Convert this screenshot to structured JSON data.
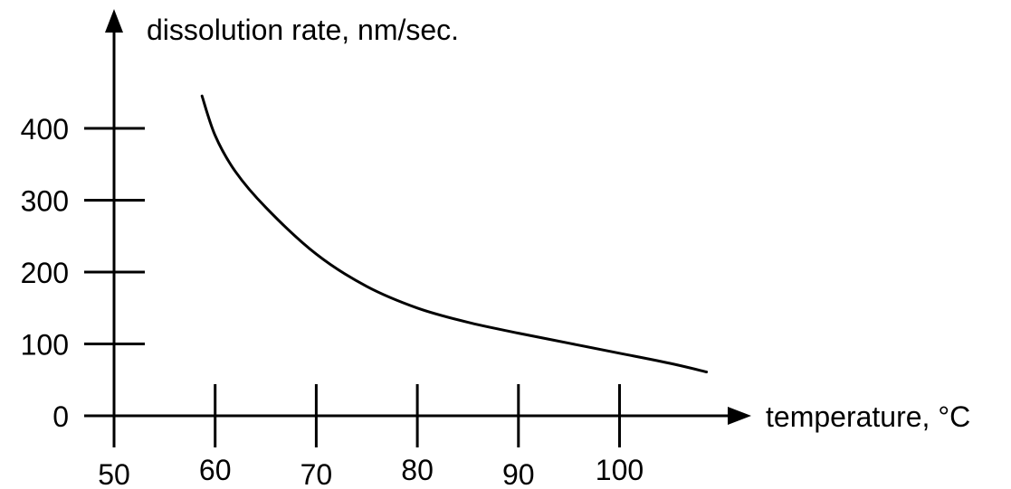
{
  "chart_data": {
    "type": "line",
    "title": "",
    "xlabel": "temperature, °C",
    "ylabel": "dissolution rate, nm/sec.",
    "xlim": [
      50,
      110
    ],
    "ylim": [
      0,
      400
    ],
    "x_ticks": [
      50,
      60,
      70,
      80,
      90,
      100
    ],
    "y_ticks": [
      0,
      100,
      200,
      300,
      400
    ],
    "grid": false,
    "legend": "none",
    "line_color": "#000000",
    "series": [
      {
        "x": [
          58.7,
          60,
          62,
          65,
          70,
          75,
          80,
          85,
          90,
          95,
          100,
          105,
          108.6
        ],
        "y": [
          445,
          390,
          340,
          290,
          225,
          180,
          150,
          130,
          115,
          101,
          87,
          73,
          61
        ]
      }
    ]
  }
}
